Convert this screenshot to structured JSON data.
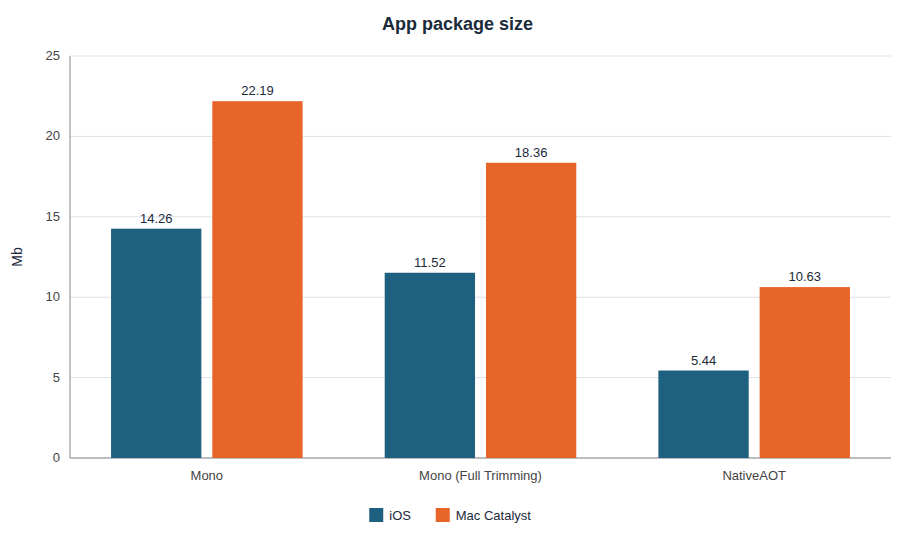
{
  "chart_data": {
    "type": "bar",
    "title": "App package size",
    "categories": [
      "Mono",
      "Mono (Full Trimming)",
      "NativeAOT"
    ],
    "series": [
      {
        "name": "iOS",
        "color": "#1e6080",
        "values": [
          14.26,
          11.52,
          5.44
        ]
      },
      {
        "name": "Mac Catalyst",
        "color": "#e8652a",
        "values": [
          22.19,
          18.36,
          10.63
        ]
      }
    ],
    "ylabel": "Mb",
    "ylim": [
      0,
      25
    ],
    "yticks": [
      0,
      5,
      10,
      15,
      20,
      25
    ],
    "grid": true,
    "legend": "bottom",
    "data_labels": true
  }
}
